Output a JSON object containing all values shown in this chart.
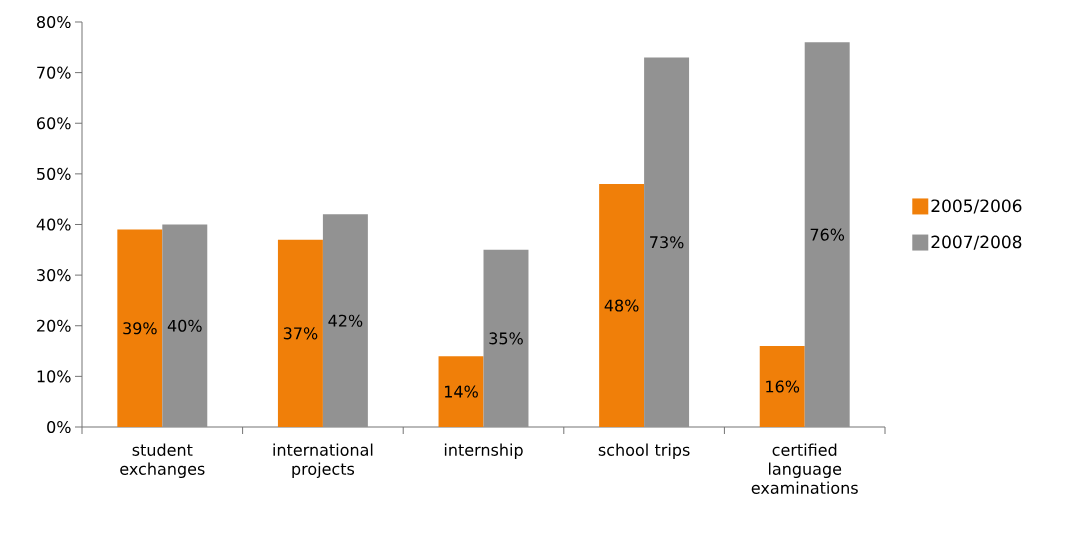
{
  "chart_data": {
    "type": "bar",
    "categories": [
      "student exchanges",
      "international projects",
      "internship",
      "school trips",
      "certified language examinations"
    ],
    "series": [
      {
        "name": "2005/2006",
        "color": "#f07f09",
        "values": [
          39,
          37,
          14,
          48,
          16
        ],
        "value_labels": [
          "39%",
          "37%",
          "14%",
          "48%",
          "16%"
        ]
      },
      {
        "name": "2007/2008",
        "color": "#929292",
        "values": [
          40,
          42,
          35,
          73,
          76
        ],
        "value_labels": [
          "40%",
          "42%",
          "35%",
          "73%",
          "76%"
        ]
      }
    ],
    "ylim": [
      0,
      80
    ],
    "yticks": [
      {
        "value": 0,
        "label": "0%"
      },
      {
        "value": 10,
        "label": "10%"
      },
      {
        "value": 20,
        "label": "20%"
      },
      {
        "value": 30,
        "label": "30%"
      },
      {
        "value": 40,
        "label": "40%"
      },
      {
        "value": 50,
        "label": "50%"
      },
      {
        "value": 60,
        "label": "60%"
      },
      {
        "value": 70,
        "label": "70%"
      },
      {
        "value": 80,
        "label": "80%"
      }
    ],
    "legend": "right"
  }
}
